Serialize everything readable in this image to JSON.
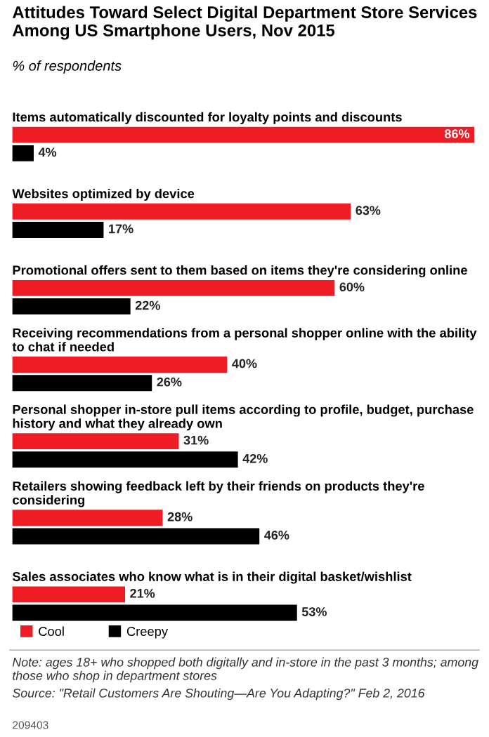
{
  "chart_data": {
    "type": "bar",
    "orientation": "horizontal",
    "title": "Attitudes Toward Select Digital Department Store Services Among US Smartphone Users, Nov 2015",
    "subtitle": "% of respondents",
    "categories": [
      "Items automatically discounted for loyalty points and discounts",
      "Websites optimized by device",
      "Promotional offers sent to them based on items they're considering online",
      "Receiving recommendations from a personal shopper online with the ability to chat if needed",
      "Personal shopper in-store pull items according to profile, budget, purchase history and what they already own",
      "Retailers showing feedback left by their friends on products they're considering",
      "Sales associates who know what is in their digital basket/wishlist"
    ],
    "series": [
      {
        "name": "Cool",
        "color": "#ee1c25",
        "values": [
          86,
          63,
          60,
          40,
          31,
          28,
          21
        ],
        "value_labels": [
          "86%",
          "63%",
          "60%",
          "40%",
          "31%",
          "28%",
          "21%"
        ]
      },
      {
        "name": "Creepy",
        "color": "#000000",
        "values": [
          4,
          17,
          22,
          26,
          42,
          46,
          53
        ],
        "value_labels": [
          "4%",
          "17%",
          "22%",
          "26%",
          "42%",
          "46%",
          "53%"
        ]
      }
    ],
    "legend": "bottom",
    "annotations": [
      "Note: ages 18+ who shopped both digitally and in-store in the past 3 months; among those who shop in department stores",
      "Source: \"Retail Customers Are Shouting—Are You Adapting?\" Feb 2, 2016",
      "209403"
    ]
  }
}
